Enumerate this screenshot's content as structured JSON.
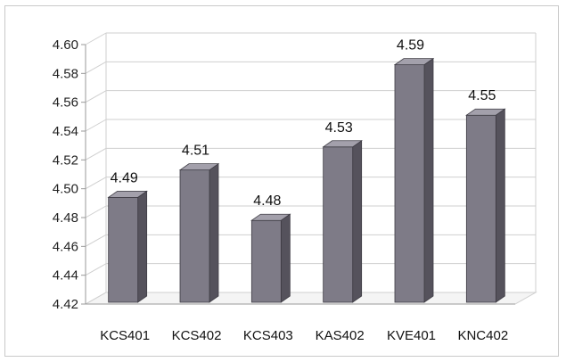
{
  "chart_data": {
    "type": "bar",
    "categories": [
      "KCS401",
      "KCS402",
      "KCS403",
      "KAS402",
      "KVE401",
      "KNC402"
    ],
    "values": [
      4.49,
      4.51,
      4.48,
      4.53,
      4.59,
      4.55
    ],
    "data_labels": [
      "4.49",
      "4.51",
      "4.48",
      "4.53",
      "4.59",
      "4.55"
    ],
    "heights": [
      4.494,
      4.513,
      4.478,
      4.529,
      4.586,
      4.551
    ],
    "ylim": [
      4.42,
      4.6
    ],
    "yticks": [
      "4.42",
      "4.44",
      "4.46",
      "4.48",
      "4.50",
      "4.52",
      "4.54",
      "4.56",
      "4.58",
      "4.60"
    ],
    "grid": true,
    "style": "3d-column",
    "colors": {
      "bar_front": "#7e7b87",
      "bar_side": "#55525c",
      "bar_top": "#a3a0ab",
      "grid": "#cfcfcf",
      "axis": "#9a9a9a"
    }
  }
}
